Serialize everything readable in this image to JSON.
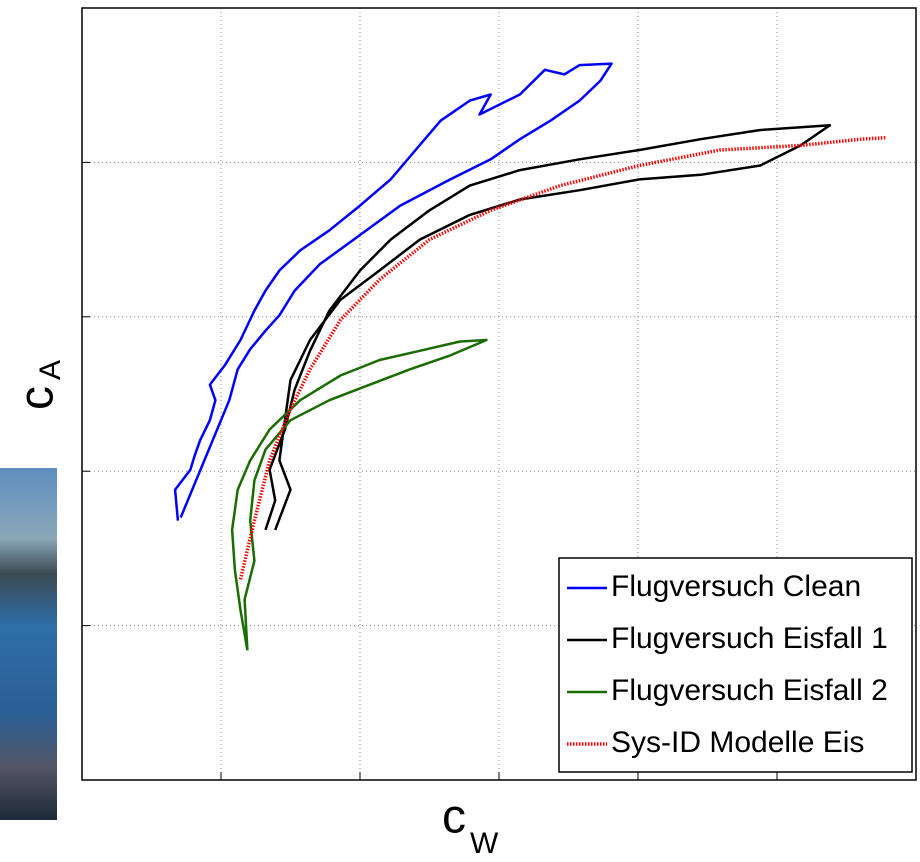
{
  "chart_data": {
    "type": "line",
    "xlabel": {
      "text": "c",
      "sub": "W"
    },
    "ylabel": {
      "text": "c",
      "sub": "A"
    },
    "xlim": [
      0,
      6
    ],
    "xticks": [
      0,
      1,
      2,
      3,
      4,
      5,
      6
    ],
    "ylim": [
      0,
      5
    ],
    "yticks": [
      0,
      1,
      2,
      3,
      4,
      5
    ],
    "grid": true,
    "legend": "lower right",
    "series": [
      {
        "name": "Flugversuch Clean",
        "color": "#0000ff",
        "style": "solid",
        "x": [
          0.69,
          0.67,
          0.78,
          0.81,
          0.85,
          0.92,
          0.96,
          0.92,
          1.03,
          1.14,
          1.24,
          1.32,
          1.42,
          1.57,
          1.78,
          2.0,
          2.22,
          2.4,
          2.58,
          2.79,
          2.94,
          2.86,
          3.15,
          3.33,
          3.47,
          3.58,
          3.81,
          3.73,
          3.58,
          3.37,
          3.15,
          2.94,
          2.65,
          2.29,
          2.0,
          1.71,
          1.53,
          1.42,
          1.32,
          1.21,
          1.12,
          1.06,
          0.71
        ],
        "values": [
          1.68,
          1.88,
          2.01,
          2.1,
          2.2,
          2.33,
          2.46,
          2.56,
          2.69,
          2.85,
          3.04,
          3.17,
          3.3,
          3.43,
          3.56,
          3.72,
          3.89,
          4.08,
          4.27,
          4.4,
          4.44,
          4.31,
          4.44,
          4.6,
          4.57,
          4.63,
          4.64,
          4.53,
          4.4,
          4.27,
          4.15,
          4.02,
          3.89,
          3.72,
          3.53,
          3.34,
          3.17,
          3.01,
          2.91,
          2.79,
          2.66,
          2.46,
          1.7
        ]
      },
      {
        "name": "Flugversuch Eisfall 1",
        "color": "#000000",
        "style": "solid",
        "x": [
          1.32,
          1.39,
          1.35,
          1.46,
          1.53,
          1.64,
          1.78,
          2.0,
          2.22,
          2.5,
          2.79,
          3.15,
          3.58,
          4.01,
          4.45,
          4.88,
          5.38,
          5.17,
          4.88,
          4.45,
          4.01,
          3.58,
          3.15,
          2.79,
          2.43,
          2.14,
          1.86,
          1.64,
          1.5,
          1.46,
          1.42,
          1.5,
          1.39
        ],
        "values": [
          1.62,
          1.81,
          2.01,
          2.27,
          2.53,
          2.78,
          3.04,
          3.3,
          3.5,
          3.69,
          3.85,
          3.95,
          4.02,
          4.08,
          4.15,
          4.21,
          4.24,
          4.11,
          3.98,
          3.92,
          3.89,
          3.82,
          3.76,
          3.66,
          3.5,
          3.3,
          3.11,
          2.85,
          2.59,
          2.33,
          2.07,
          1.88,
          1.62
        ]
      },
      {
        "name": "Flugversuch Eisfall 2",
        "color": "#1a6b00",
        "style": "solid",
        "x": [
          1.19,
          1.14,
          1.1,
          1.08,
          1.12,
          1.21,
          1.35,
          1.57,
          1.86,
          2.14,
          2.43,
          2.72,
          2.91,
          2.65,
          2.36,
          2.07,
          1.78,
          1.5,
          1.32,
          1.24,
          1.21,
          1.24,
          1.17,
          1.19
        ],
        "values": [
          0.84,
          1.1,
          1.36,
          1.62,
          1.88,
          2.07,
          2.27,
          2.46,
          2.62,
          2.72,
          2.78,
          2.84,
          2.85,
          2.75,
          2.66,
          2.56,
          2.46,
          2.33,
          2.14,
          1.94,
          1.68,
          1.42,
          1.17,
          0.84
        ]
      },
      {
        "name": "Sys-ID Modelle Eis",
        "color": "#ff0000",
        "style": "dotted",
        "x": [
          1.14,
          1.24,
          1.35,
          1.5,
          1.64,
          1.86,
          2.14,
          2.5,
          2.94,
          3.44,
          4.01,
          4.59,
          5.17,
          5.6,
          5.78
        ],
        "values": [
          1.3,
          1.68,
          2.07,
          2.4,
          2.66,
          2.98,
          3.24,
          3.5,
          3.69,
          3.85,
          3.98,
          4.08,
          4.11,
          4.15,
          4.16
        ]
      }
    ]
  }
}
